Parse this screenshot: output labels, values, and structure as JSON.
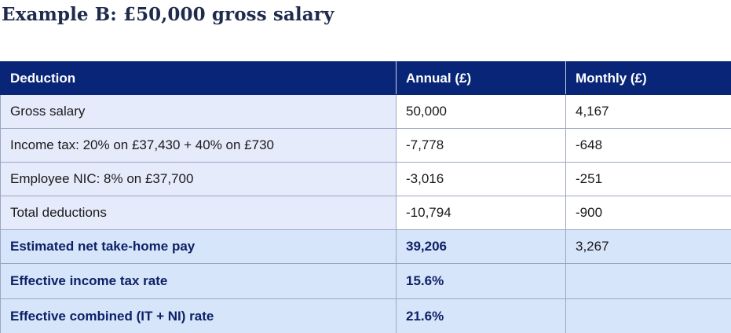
{
  "title": "Example B: £50,000 gross salary",
  "table": {
    "headers": [
      "Deduction",
      "Annual (£)",
      "Monthly (£)"
    ],
    "rows": [
      {
        "label": "Gross salary",
        "annual": "50,000",
        "monthly": "4,167"
      },
      {
        "label": "Income tax: 20% on £37,430 + 40% on £730",
        "annual": "-7,778",
        "monthly": "-648"
      },
      {
        "label": "Employee NIC: 8% on £37,700",
        "annual": "-3,016",
        "monthly": "-251"
      },
      {
        "label": "Total deductions",
        "annual": "-10,794",
        "monthly": "-900"
      }
    ],
    "summary_rows": [
      {
        "label": "Estimated net take-home pay",
        "annual": "39,206",
        "monthly": "3,267"
      },
      {
        "label": "Effective income tax rate",
        "annual": "15.6%",
        "monthly": ""
      },
      {
        "label": "Effective combined (IT + NI) rate",
        "annual": "21.6%",
        "monthly": ""
      }
    ]
  },
  "colors": {
    "header_bg": "#082577",
    "label_col_bg": "#e6ebfb",
    "summary_bg": "#d7e5fb",
    "summary_text": "#0d2166",
    "title_text": "#1f2a4d"
  }
}
